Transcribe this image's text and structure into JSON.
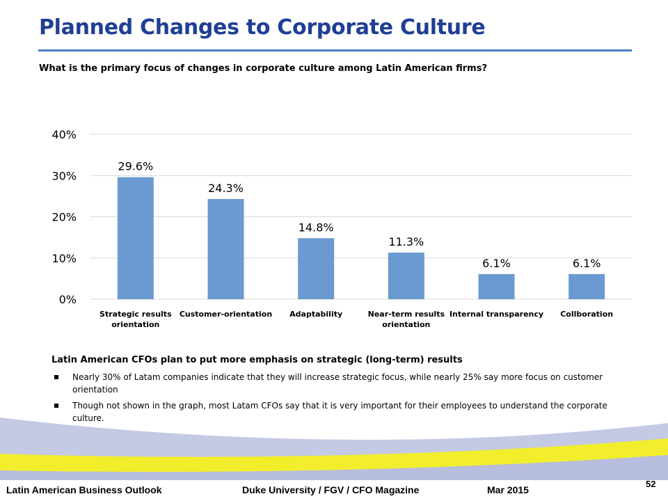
{
  "slide": {
    "title": "Planned Changes to Corporate Culture",
    "question": "What is the primary focus of changes in corporate culture among Latin American firms?"
  },
  "chart_data": {
    "type": "bar",
    "categories": [
      [
        "Strategic results",
        "orientation"
      ],
      [
        "Customer-orientation"
      ],
      [
        "Adaptability"
      ],
      [
        "Near-term results",
        "orientation"
      ],
      [
        "Internal transparency"
      ],
      [
        "Collboration"
      ]
    ],
    "values": [
      29.6,
      24.3,
      14.8,
      11.3,
      6.1,
      6.1
    ],
    "data_labels": [
      "29.6%",
      "24.3%",
      "14.8%",
      "11.3%",
      "6.1%",
      "6.1%"
    ],
    "yticks": [
      "0%",
      "10%",
      "20%",
      "30%",
      "40%"
    ],
    "ylim": [
      0,
      40
    ],
    "grid": true,
    "legend": "none",
    "bar_color": "#6a9acf",
    "grid_color": "#d9d9d9"
  },
  "findings": {
    "heading": "Latin American CFOs plan to put more emphasis on strategic (long-term) results",
    "bullets": [
      "Nearly 30% of Latam companies indicate that they will increase strategic focus, while nearly 25% say more focus on customer orientation",
      "Though not shown in the graph, most Latam CFOs say that it is very important for their employees to understand the corporate culture."
    ]
  },
  "footer": {
    "left": "Latin American Business Outlook",
    "middle": "Duke University / FGV / CFO Magazine",
    "date": "Mar 2015",
    "page": "52"
  },
  "colors": {
    "title": "#1f3f95",
    "rule": "#4a7ec2",
    "swoosh_blue": "#aeb6d8",
    "swoosh_yellow": "#f2ee2c"
  }
}
